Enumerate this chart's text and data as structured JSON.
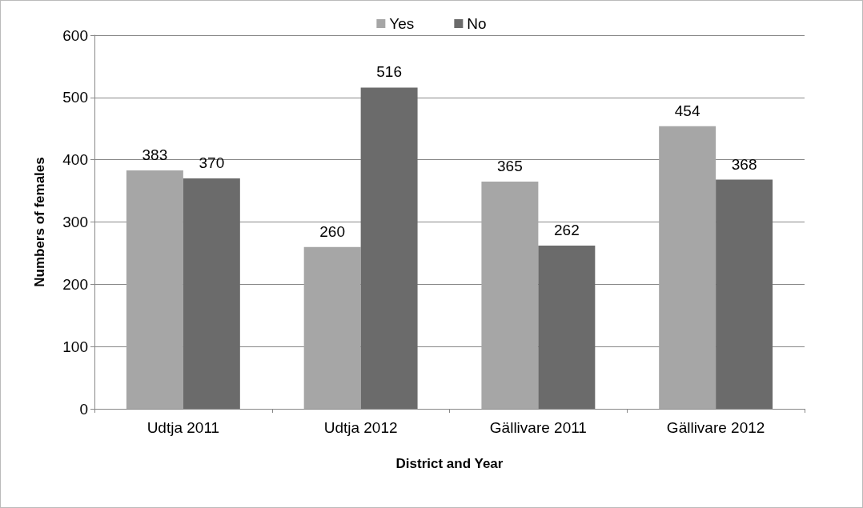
{
  "chart_data": {
    "type": "bar",
    "xlabel": "District and Year",
    "ylabel": "Numbers of females",
    "categories": [
      "Udtja 2011",
      "Udtja 2012",
      "Gällivare 2011",
      "Gällivare 2012"
    ],
    "series": [
      {
        "name": "Yes",
        "color": "#a6a6a6",
        "values": [
          383,
          260,
          365,
          454
        ]
      },
      {
        "name": "No",
        "color": "#6b6b6b",
        "values": [
          370,
          516,
          262,
          368
        ]
      }
    ],
    "ylim": [
      0,
      600
    ],
    "yticks": [
      0,
      100,
      200,
      300,
      400,
      500,
      600
    ],
    "grid": "y",
    "legend": "top",
    "data_labels": true
  }
}
